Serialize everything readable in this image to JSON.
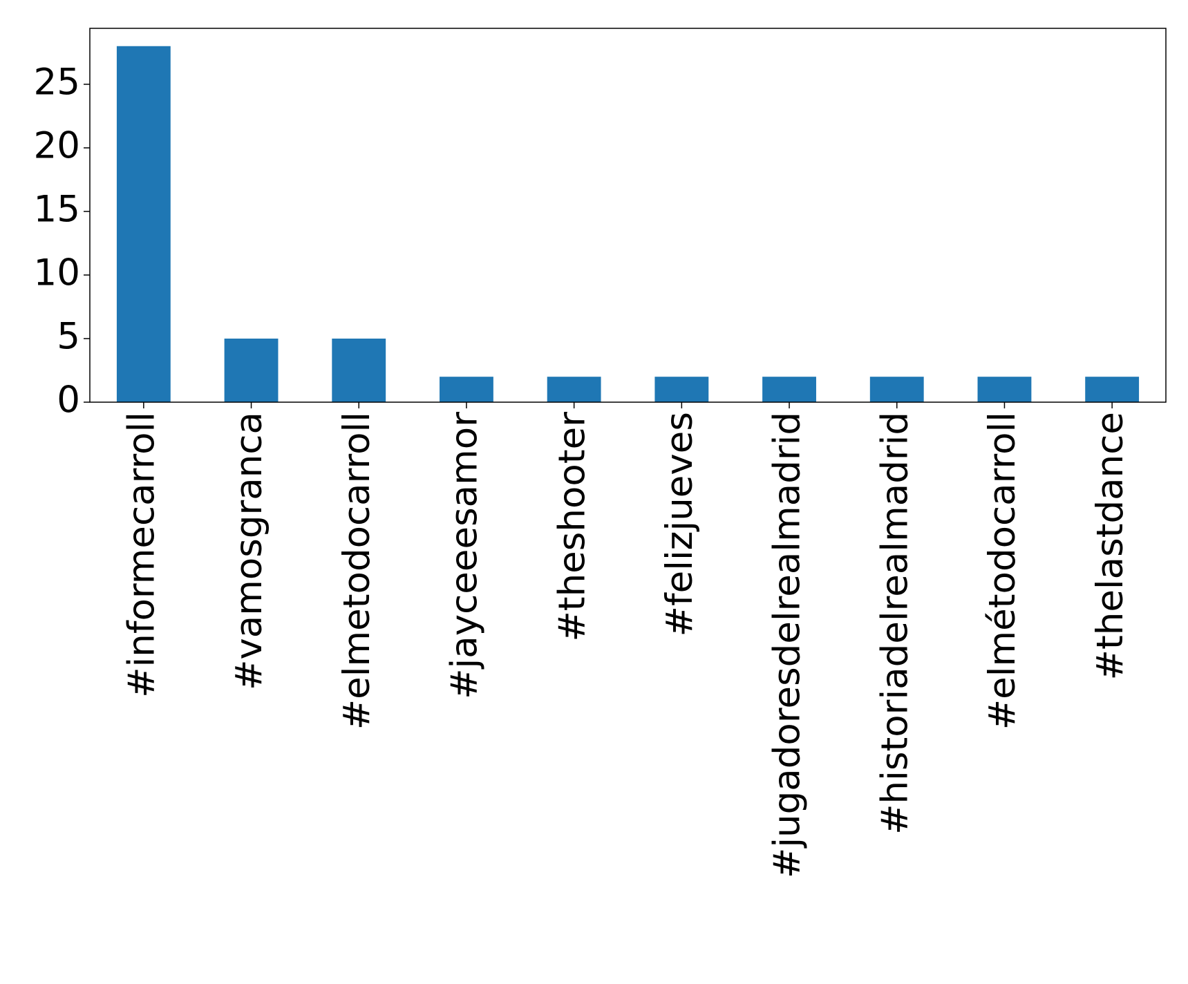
{
  "chart_data": {
    "type": "bar",
    "categories": [
      "#informecarroll",
      "#vamosgranca",
      "#elmetodocarroll",
      "#jayceeesamor",
      "#theshooter",
      "#felizjueves",
      "#jugadoresdelrealmadrid",
      "#historiadelrealmadrid",
      "#elmétodocarroll",
      "#thelastdance"
    ],
    "values": [
      28,
      5,
      5,
      2,
      2,
      2,
      2,
      2,
      2,
      2
    ],
    "color": "#1f77b4",
    "ylim": [
      0,
      29.4
    ],
    "yticks": [
      0,
      5,
      10,
      15,
      20,
      25
    ],
    "grid": false
  }
}
